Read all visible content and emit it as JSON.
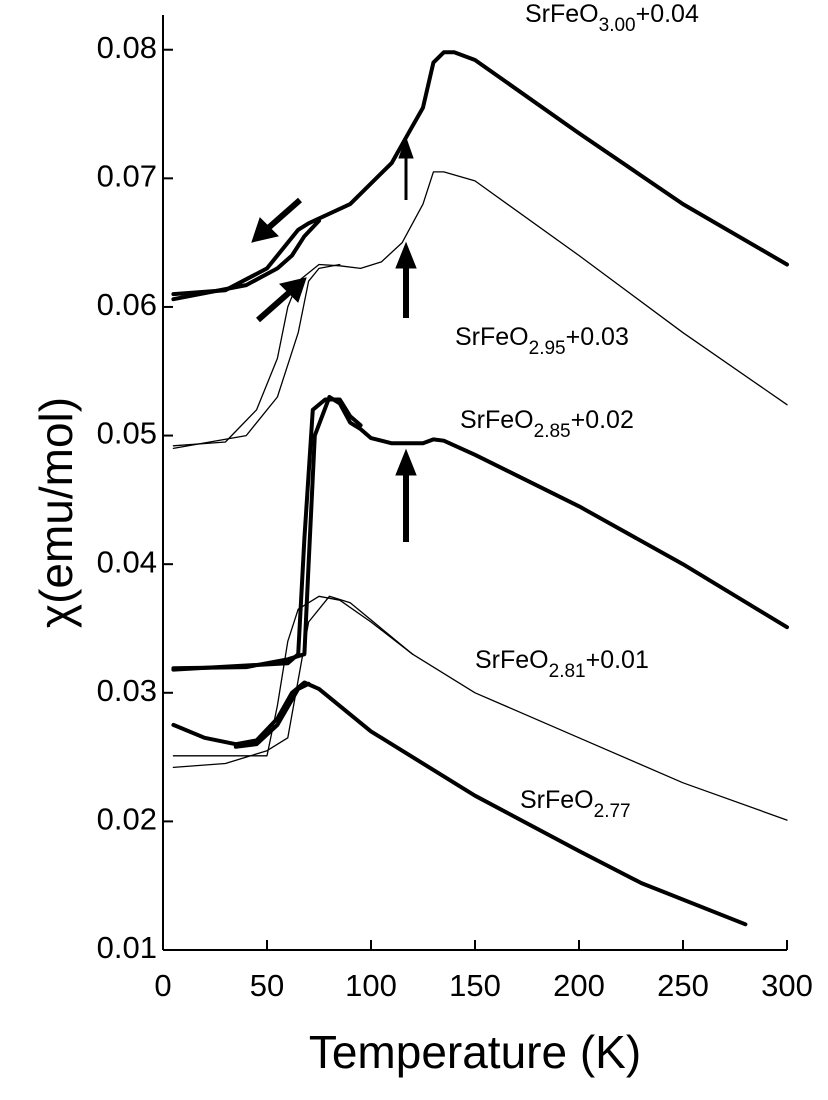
{
  "chart_data": {
    "type": "line",
    "x_label": "Temperature (K)",
    "y_label": "χ(emu/mol)",
    "xlim": [
      0,
      300
    ],
    "ylim": [
      0.01,
      0.0827
    ],
    "xticks": [
      0,
      50,
      100,
      150,
      200,
      250,
      300
    ],
    "yticks": [
      0.01,
      0.02,
      0.03,
      0.04,
      0.05,
      0.06,
      0.07,
      0.08
    ],
    "color": "#000000",
    "series": [
      {
        "formula": "SrFeO",
        "subscript": "3.00",
        "suffix": "+0.04",
        "curves": [
          {
            "x": [
              5,
              30,
              50,
              60,
              65,
              70,
              90,
              110,
              118,
              125,
              130,
              135,
              140,
              150,
              200,
              250,
              300
            ],
            "y": [
              0.061,
              0.0613,
              0.063,
              0.065,
              0.066,
              0.0665,
              0.068,
              0.0712,
              0.0735,
              0.0755,
              0.079,
              0.0798,
              0.0798,
              0.0792,
              0.0735,
              0.068,
              0.0633
            ]
          },
          {
            "x": [
              5,
              40,
              55,
              62,
              68,
              75
            ],
            "y": [
              0.0606,
              0.0617,
              0.063,
              0.064,
              0.0655,
              0.0667
            ]
          }
        ]
      },
      {
        "formula": "SrFeO",
        "subscript": "2.95",
        "suffix": "+0.03",
        "curves": [
          {
            "x": [
              5,
              30,
              45,
              55,
              60,
              65,
              75,
              85,
              95,
              105,
              115,
              120,
              125,
              130,
              135,
              150,
              200,
              250,
              300
            ],
            "y": [
              0.0492,
              0.0495,
              0.052,
              0.056,
              0.06,
              0.062,
              0.0633,
              0.0632,
              0.063,
              0.0635,
              0.065,
              0.0665,
              0.068,
              0.0705,
              0.0705,
              0.0698,
              0.064,
              0.058,
              0.0524
            ]
          },
          {
            "x": [
              5,
              40,
              55,
              65,
              70,
              75,
              85
            ],
            "y": [
              0.049,
              0.05,
              0.053,
              0.058,
              0.062,
              0.063,
              0.0633
            ]
          }
        ]
      },
      {
        "formula": "SrFeO",
        "subscript": "2.85",
        "suffix": "+0.02",
        "curves": [
          {
            "x": [
              5,
              40,
              60,
              68,
              70,
              73,
              80,
              85,
              90,
              95,
              100,
              110,
              125,
              130,
              135,
              150,
              200,
              250,
              300
            ],
            "y": [
              0.0319,
              0.032,
              0.0326,
              0.033,
              0.04,
              0.05,
              0.053,
              0.0525,
              0.051,
              0.0505,
              0.0498,
              0.0494,
              0.0494,
              0.0497,
              0.0496,
              0.0485,
              0.0445,
              0.04,
              0.0351
            ]
          },
          {
            "x": [
              5,
              60,
              65,
              68,
              72,
              78,
              85,
              90,
              95
            ],
            "y": [
              0.0318,
              0.0323,
              0.033,
              0.042,
              0.052,
              0.0528,
              0.0528,
              0.0515,
              0.0508
            ]
          }
        ]
      },
      {
        "formula": "SrFeO",
        "subscript": "2.81",
        "suffix": "+0.01",
        "curves": [
          {
            "x": [
              5,
              50,
              55,
              60,
              65,
              75,
              85,
              100,
              120,
              150,
              200,
              250,
              300
            ],
            "y": [
              0.0251,
              0.0251,
              0.029,
              0.034,
              0.0365,
              0.0375,
              0.0372,
              0.0355,
              0.033,
              0.03,
              0.0265,
              0.023,
              0.0201
            ]
          },
          {
            "x": [
              5,
              30,
              50,
              60,
              65,
              70,
              80,
              90,
              120
            ],
            "y": [
              0.0242,
              0.0245,
              0.0255,
              0.0265,
              0.031,
              0.0355,
              0.0375,
              0.037,
              0.033
            ]
          }
        ]
      },
      {
        "formula": "SrFeO",
        "subscript": "2.77",
        "curves": [
          {
            "x": [
              5,
              20,
              35,
              45,
              55,
              62,
              68,
              75,
              100,
              150,
              200,
              230,
              280
            ],
            "y": [
              0.0275,
              0.0265,
              0.026,
              0.0263,
              0.028,
              0.03,
              0.0308,
              0.0303,
              0.027,
              0.022,
              0.0177,
              0.0152,
              0.012
            ]
          },
          {
            "x": [
              35,
              45,
              55,
              65,
              70
            ],
            "y": [
              0.0258,
              0.026,
              0.0275,
              0.0303,
              0.0307
            ]
          }
        ]
      }
    ]
  }
}
